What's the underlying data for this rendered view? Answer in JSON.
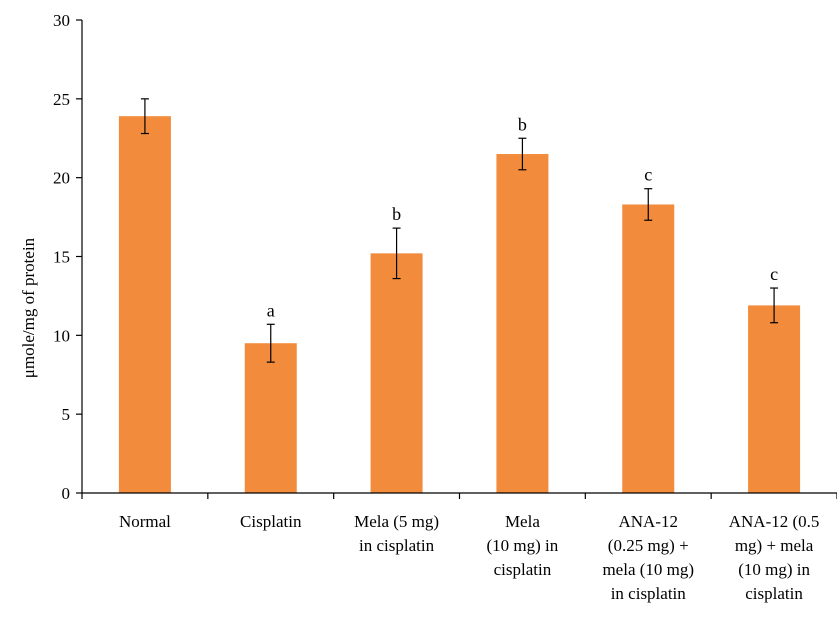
{
  "chart_data": {
    "type": "bar",
    "title": "",
    "xlabel": "",
    "ylabel": "μmole/mg of protein",
    "ylim": [
      0,
      30
    ],
    "yticks": [
      0,
      5,
      10,
      15,
      20,
      25,
      30
    ],
    "grid": false,
    "legend": "none",
    "bar_color": "#F28C3C",
    "categories": [
      [
        "Normal"
      ],
      [
        "Cisplatin"
      ],
      [
        "Mela (5 mg)",
        "in cisplatin"
      ],
      [
        "Mela",
        "(10 mg) in",
        "cisplatin"
      ],
      [
        "ANA-12",
        "(0.25 mg) +",
        "mela (10 mg)",
        "in cisplatin"
      ],
      [
        "ANA-12 (0.5",
        "mg) + mela",
        "(10 mg) in",
        "cisplatin"
      ]
    ],
    "values": [
      23.9,
      9.5,
      15.2,
      21.5,
      18.3,
      11.9
    ],
    "errors": [
      1.1,
      1.2,
      1.6,
      1.0,
      1.0,
      1.1
    ],
    "annotations": [
      "",
      "a",
      "b",
      "b",
      "c",
      "c"
    ]
  }
}
